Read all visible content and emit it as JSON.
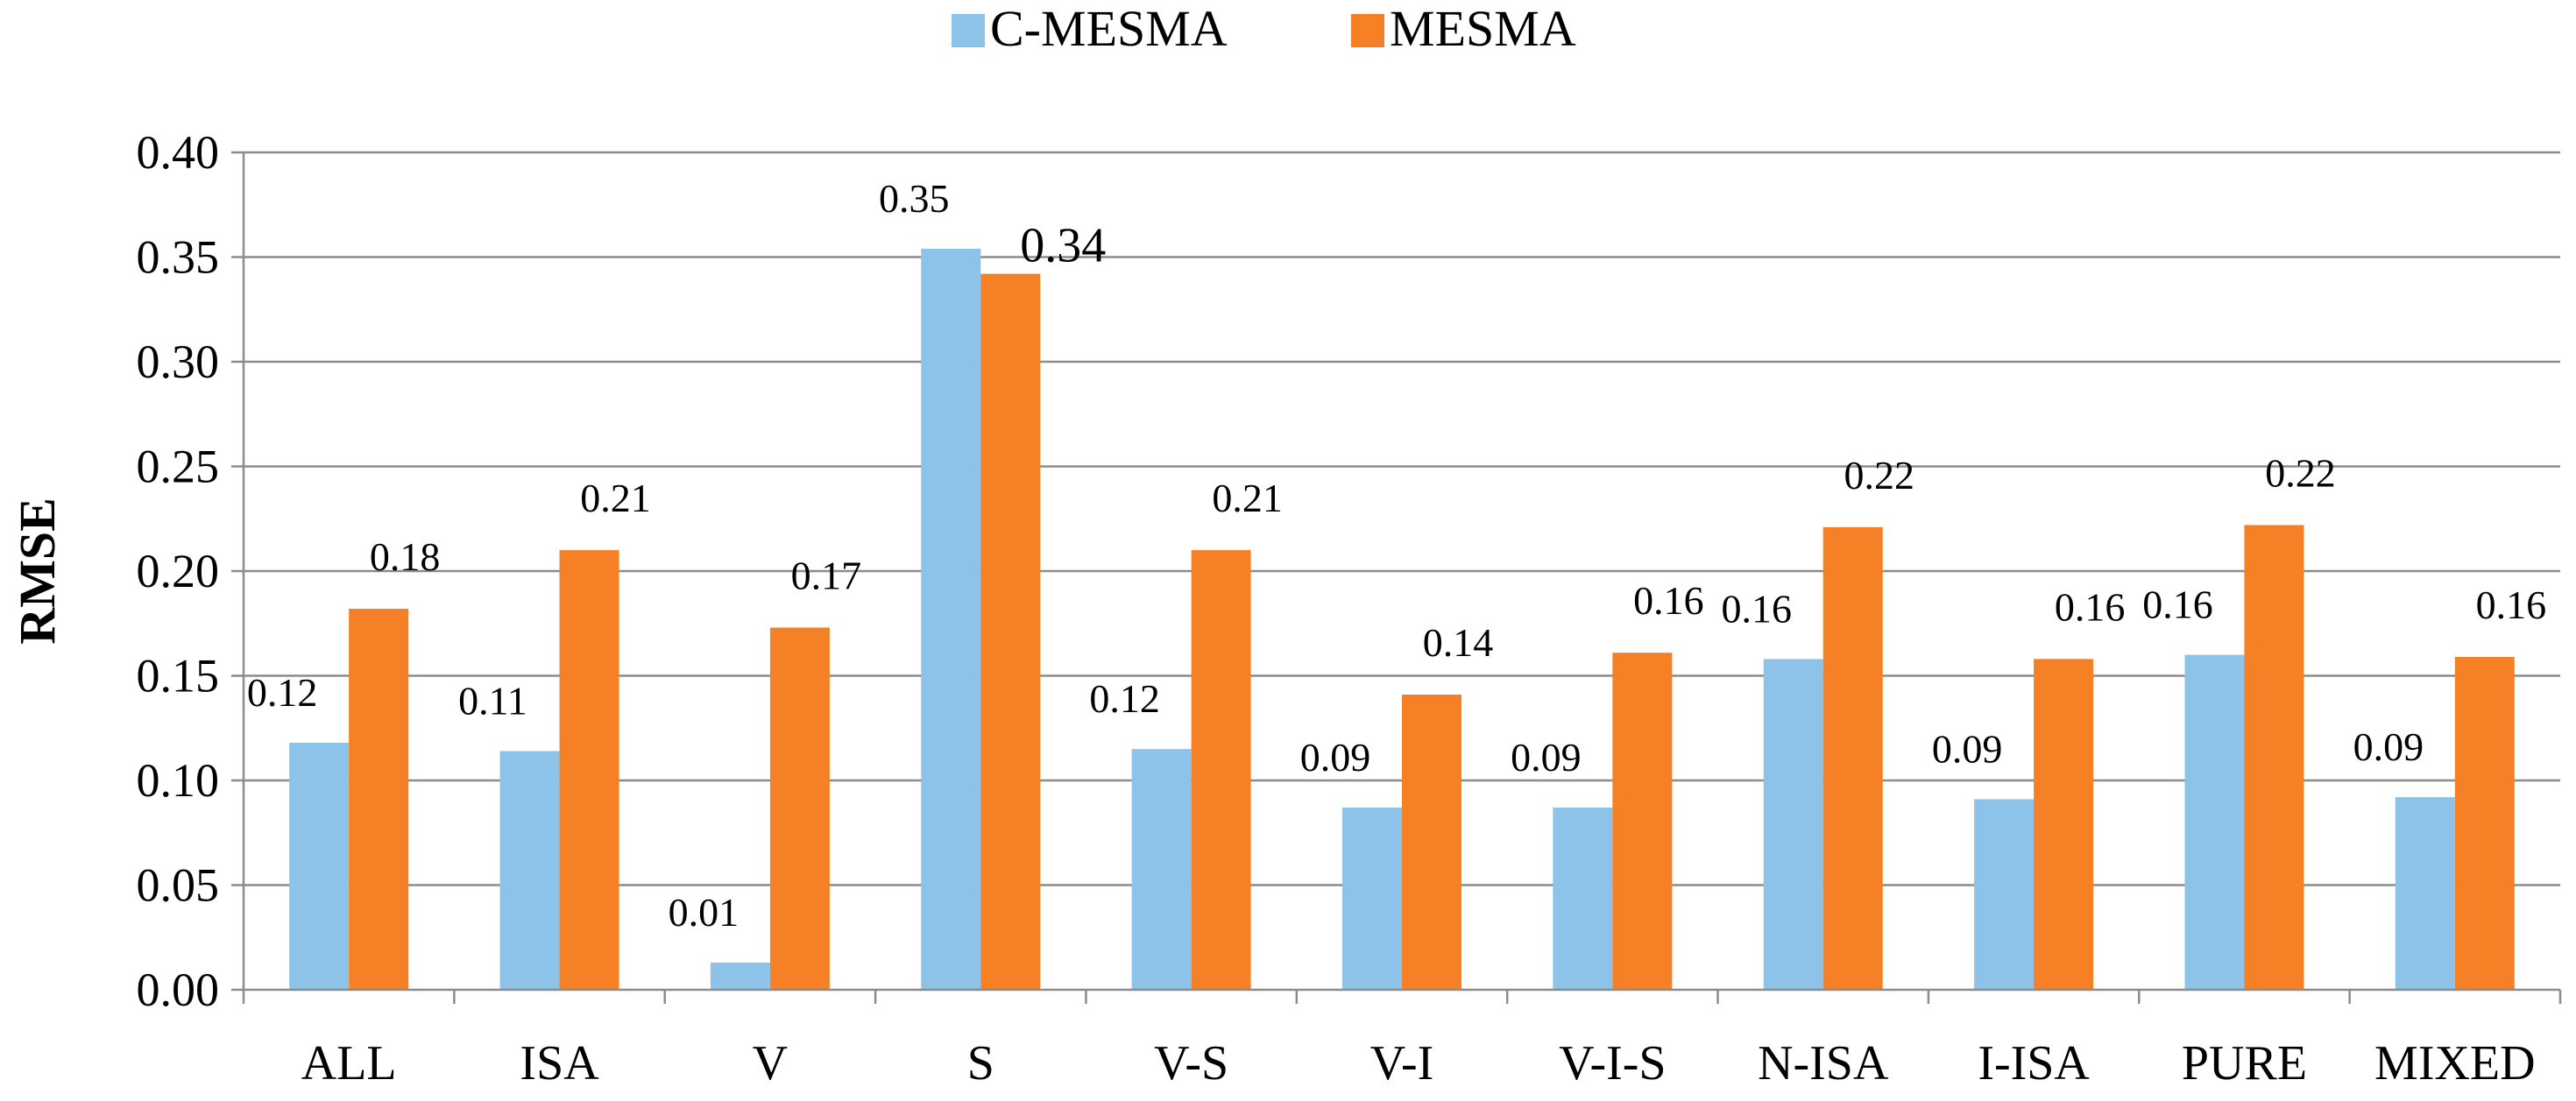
{
  "chart_data": {
    "type": "bar",
    "title": "",
    "xlabel": "",
    "ylabel": "RMSE",
    "ylim": [
      0,
      0.4
    ],
    "yticks": [
      "0.00",
      "0.05",
      "0.10",
      "0.15",
      "0.20",
      "0.25",
      "0.30",
      "0.35",
      "0.40"
    ],
    "grid": true,
    "legend_position": "top-center",
    "categories": [
      "ALL",
      "ISA",
      "V",
      "S",
      "V-S",
      "V-I",
      "V-I-S",
      "N-ISA",
      "I-ISA",
      "PURE",
      "MIXED"
    ],
    "series": [
      {
        "name": "C-MESMA",
        "color": "#8DC3E8",
        "values": [
          0.118,
          0.114,
          0.013,
          0.354,
          0.115,
          0.087,
          0.087,
          0.158,
          0.091,
          0.16,
          0.092
        ],
        "labels": [
          "0.12",
          "0.11",
          "0.01",
          "0.35",
          "0.12",
          "0.09",
          "0.09",
          "0.16",
          "0.09",
          "0.16",
          "0.09"
        ]
      },
      {
        "name": "MESMA",
        "color": "#F58025",
        "values": [
          0.182,
          0.21,
          0.173,
          0.342,
          0.21,
          0.141,
          0.161,
          0.221,
          0.158,
          0.222,
          0.159
        ],
        "labels": [
          "0.18",
          "0.21",
          "0.17",
          "0.34",
          "0.21",
          "0.14",
          "0.16",
          "0.22",
          "0.16",
          "0.22",
          "0.16"
        ]
      }
    ]
  }
}
